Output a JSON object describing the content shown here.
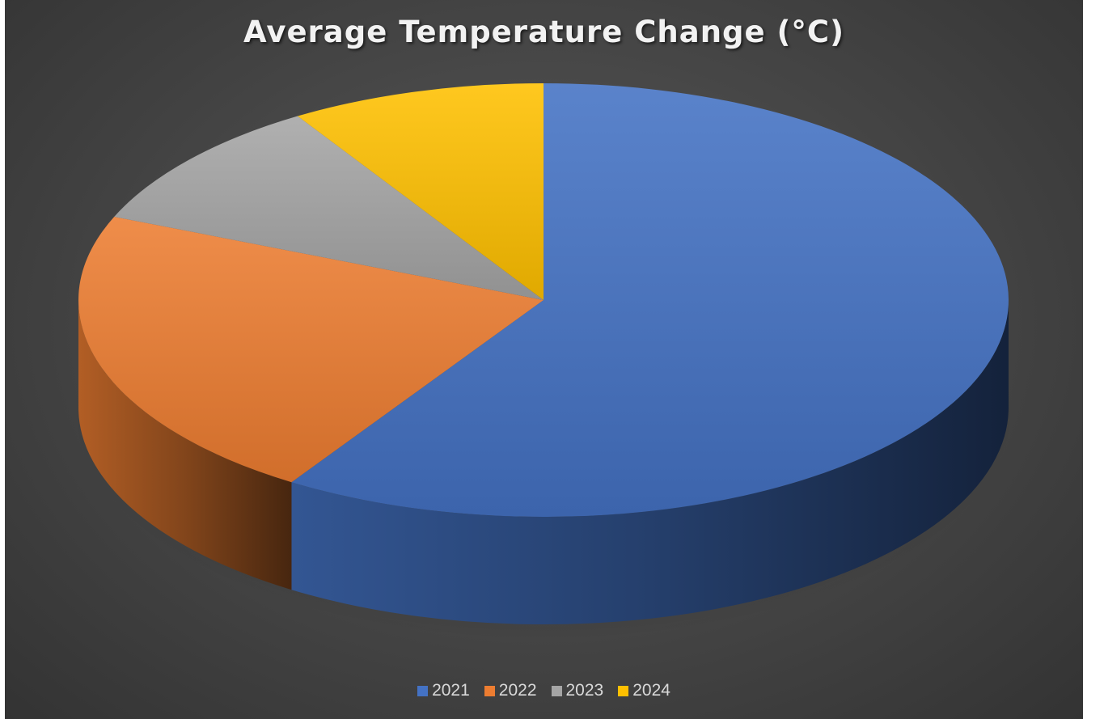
{
  "chart_data": {
    "type": "pie",
    "title": "Average Temperature Change (°C)",
    "categories": [
      "2021",
      "2022",
      "2023",
      "2024"
    ],
    "values": [
      1.2,
      0.45,
      0.2,
      0.18
    ],
    "colors": [
      "#4472c4",
      "#ed7d31",
      "#a5a5a5",
      "#ffc000"
    ],
    "legend_position": "bottom",
    "style": "3d"
  }
}
